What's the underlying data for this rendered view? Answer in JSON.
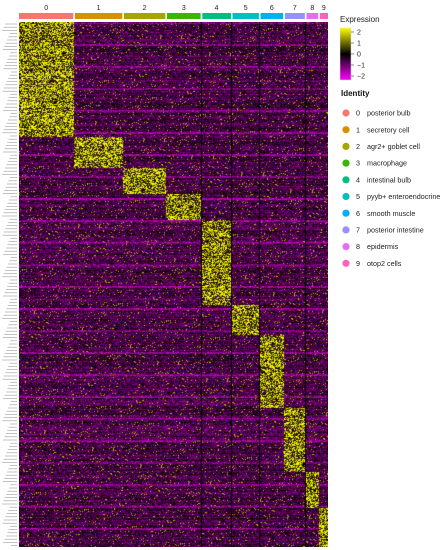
{
  "chart_data": {
    "type": "heatmap",
    "clusters": [
      {
        "id": "0",
        "color": "#F8766D",
        "cells": 119
      },
      {
        "id": "1",
        "color": "#D89000",
        "cells": 104
      },
      {
        "id": "2",
        "color": "#A3A500",
        "cells": 91
      },
      {
        "id": "3",
        "color": "#39B600",
        "cells": 74
      },
      {
        "id": "4",
        "color": "#00BF7D",
        "cells": 63
      },
      {
        "id": "5",
        "color": "#00BFC4",
        "cells": 58
      },
      {
        "id": "6",
        "color": "#00B0F6",
        "cells": 50
      },
      {
        "id": "7",
        "color": "#9590FF",
        "cells": 44
      },
      {
        "id": "8",
        "color": "#E76BF3",
        "cells": 26
      },
      {
        "id": "9",
        "color": "#FF62BC",
        "cells": 18
      }
    ],
    "gene_blocks": [
      {
        "cluster": "0",
        "genes": 45
      },
      {
        "cluster": "1",
        "genes": 12
      },
      {
        "cluster": "2",
        "genes": 10
      },
      {
        "cluster": "3",
        "genes": 10
      },
      {
        "cluster": "4",
        "genes": 33
      },
      {
        "cluster": "5",
        "genes": 12
      },
      {
        "cluster": "6",
        "genes": 28
      },
      {
        "cluster": "7",
        "genes": 25
      },
      {
        "cluster": "8",
        "genes": 14
      },
      {
        "cluster": "9",
        "genes": 15
      }
    ],
    "color_scale": {
      "title": "Expression",
      "ticks": [
        "2",
        "1",
        "0",
        "−1",
        "−2"
      ],
      "range": [
        -2.5,
        2.5
      ],
      "colors": [
        "#FF00FF",
        "#000000",
        "#FFFF00"
      ]
    },
    "legend": {
      "title": "Identity",
      "placement": "right",
      "entries": [
        {
          "id": "0",
          "color": "#F8766D",
          "label": "posterior bulb"
        },
        {
          "id": "1",
          "color": "#D89000",
          "label": "secretory cell"
        },
        {
          "id": "2",
          "color": "#A3A500",
          "label": "agr2+ goblet cell"
        },
        {
          "id": "3",
          "color": "#39B600",
          "label": "macrophage"
        },
        {
          "id": "4",
          "color": "#00BF7D",
          "label": "intestinal bulb"
        },
        {
          "id": "5",
          "color": "#00BFC4",
          "label": "pyyb+ enteroendocrine"
        },
        {
          "id": "6",
          "color": "#00B0F6",
          "label": "smooth muscle"
        },
        {
          "id": "7",
          "color": "#9590FF",
          "label": "posterior intestine"
        },
        {
          "id": "8",
          "color": "#E76BF3",
          "label": "epidermis"
        },
        {
          "id": "9",
          "color": "#FF62BC",
          "label": "otop2 cells"
        }
      ]
    }
  }
}
